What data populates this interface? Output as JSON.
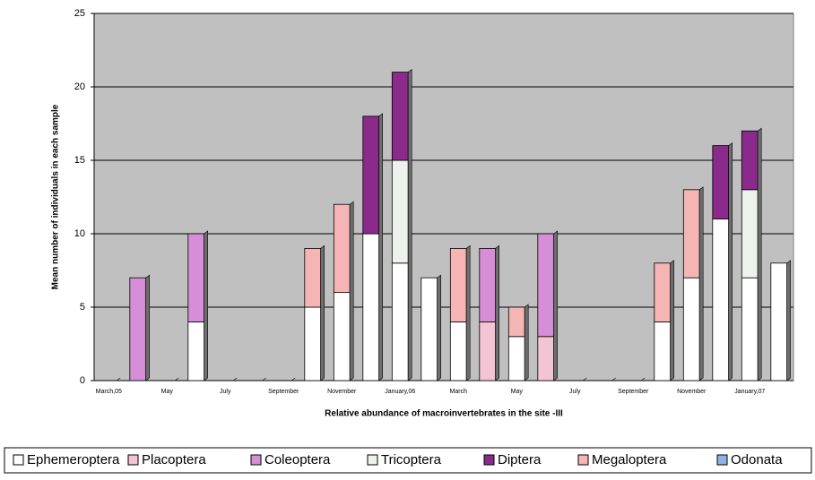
{
  "chart_data": {
    "type": "stacked_bar",
    "xlabel": "Relative abundance of macroinvertebrates in the site -III",
    "ylabel": "Mean number of individuals in each sample",
    "categories": [
      "March,05",
      null,
      "May",
      null,
      "July",
      null,
      "September",
      null,
      "November",
      null,
      "January,06",
      null,
      "March",
      null,
      "May",
      null,
      "July",
      null,
      "September",
      null,
      "November",
      null,
      "January,07",
      null
    ],
    "series": [
      {
        "name": "Ephemeroptera",
        "color": "#ffffff",
        "values": [
          0,
          0,
          0,
          4,
          0,
          0,
          0,
          5,
          6,
          10,
          8,
          7,
          4,
          0,
          3,
          0,
          0,
          0,
          0,
          4,
          7,
          11,
          7,
          8
        ]
      },
      {
        "name": "Placoptera",
        "color": "#f2c4d4",
        "values": [
          0,
          0,
          0,
          0,
          0,
          0,
          0,
          0,
          0,
          0,
          0,
          0,
          0,
          4,
          0,
          3,
          0,
          0,
          0,
          0,
          0,
          0,
          0,
          0
        ]
      },
      {
        "name": "Coleoptera",
        "color": "#d68fd6",
        "values": [
          0,
          7,
          0,
          6,
          0,
          0,
          0,
          0,
          0,
          0,
          0,
          0,
          0,
          5,
          0,
          7,
          0,
          0,
          0,
          0,
          0,
          0,
          0,
          0
        ]
      },
      {
        "name": "Tricoptera",
        "color": "#eef2ec",
        "values": [
          0,
          0,
          0,
          0,
          0,
          0,
          0,
          0,
          0,
          0,
          7,
          0,
          0,
          0,
          0,
          0,
          0,
          0,
          0,
          0,
          0,
          0,
          6,
          0
        ]
      },
      {
        "name": "Diptera",
        "color": "#8a2a8a",
        "values": [
          0,
          0,
          0,
          0,
          0,
          0,
          0,
          0,
          0,
          8,
          6,
          0,
          0,
          0,
          0,
          0,
          0,
          0,
          0,
          0,
          0,
          5,
          4,
          0
        ]
      },
      {
        "name": "Megaloptera",
        "color": "#f5b5b5",
        "values": [
          0,
          0,
          0,
          0,
          0,
          0,
          0,
          4,
          6,
          0,
          0,
          0,
          5,
          0,
          2,
          0,
          0,
          0,
          0,
          4,
          6,
          0,
          0,
          0
        ]
      },
      {
        "name": "Odonata",
        "color": "#8fb3e0",
        "values": [
          0,
          0,
          0,
          0,
          0,
          0,
          0,
          0,
          0,
          0,
          0,
          0,
          0,
          0,
          0,
          0,
          0,
          0,
          0,
          0,
          0,
          0,
          0,
          0
        ]
      }
    ],
    "ylim": [
      0,
      25
    ],
    "yticks": [
      0,
      5,
      10,
      15,
      20,
      25
    ],
    "grid": true,
    "legend": "bottom"
  }
}
